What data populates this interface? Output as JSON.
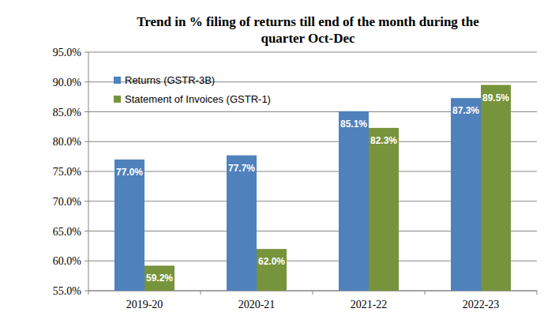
{
  "chart_data": {
    "type": "bar",
    "title": "Trend in % filing of returns till end of the month during the quarter Oct-Dec",
    "categories": [
      "2019-20",
      "2020-21",
      "2021-22",
      "2022-23"
    ],
    "series": [
      {
        "name": "Returns (GSTR-3B)",
        "color": "#4f81bd",
        "values": [
          77.0,
          77.7,
          85.1,
          87.3
        ],
        "value_labels": [
          "77.0%",
          "77.7%",
          "85.1%",
          "87.3%"
        ]
      },
      {
        "name": "Statement of Invoices (GSTR-1)",
        "color": "#77933c",
        "values": [
          59.2,
          62.0,
          82.3,
          89.5
        ],
        "value_labels": [
          "59.2%",
          "62.0%",
          "82.3%",
          "89.5%"
        ]
      }
    ],
    "ylim": [
      55,
      95
    ],
    "yticks": [
      {
        "value": 55,
        "label": "55.0%"
      },
      {
        "value": 60,
        "label": "60.0%"
      },
      {
        "value": 65,
        "label": "65.0%"
      },
      {
        "value": 70,
        "label": "70.0%"
      },
      {
        "value": 75,
        "label": "75.0%"
      },
      {
        "value": 80,
        "label": "80.0%"
      },
      {
        "value": 85,
        "label": "85.0%"
      },
      {
        "value": 90,
        "label": "90.0%"
      },
      {
        "value": 95,
        "label": "95.0%"
      }
    ],
    "grid": true,
    "legend": "upper left",
    "data_labels": true
  }
}
